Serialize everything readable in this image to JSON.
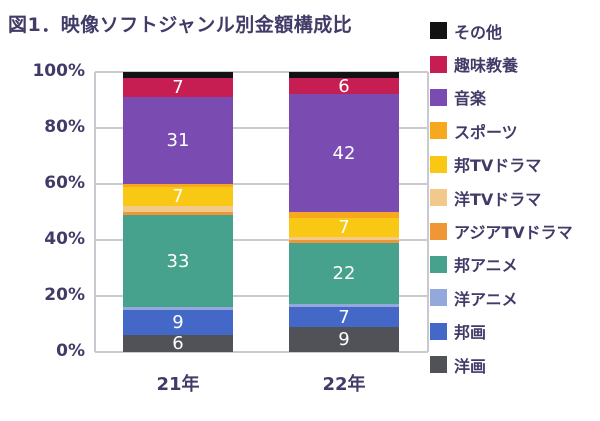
{
  "chart_data": {
    "type": "bar",
    "variant": "100-percent-stacked-column",
    "title": "図1．映像ソフトジャンル別金額構成比",
    "categories": [
      "21年",
      "22年"
    ],
    "yticks": [
      "100%",
      "80%",
      "60%",
      "40%",
      "20%",
      "0%"
    ],
    "ylim": [
      0,
      100
    ],
    "grid": true,
    "legend_position": "right",
    "label_color": "#ffffff",
    "axis_text_color": "#413b68",
    "series_bottom_to_top": [
      {
        "name": "洋画",
        "color": "#515158",
        "values": [
          6,
          9
        ]
      },
      {
        "name": "邦画",
        "color": "#4468c8",
        "values": [
          9,
          7
        ]
      },
      {
        "name": "洋アニメ",
        "color": "#93a9dc",
        "values": [
          1,
          1
        ]
      },
      {
        "name": "邦アニメ",
        "color": "#46a18d",
        "values": [
          33,
          22
        ]
      },
      {
        "name": "アジアTVドラマ",
        "color": "#ef9737",
        "values": [
          1,
          1
        ]
      },
      {
        "name": "洋TVドラマ",
        "color": "#f3c98b",
        "values": [
          2,
          1
        ]
      },
      {
        "name": "邦TVドラマ",
        "color": "#f8c815",
        "values": [
          7,
          7
        ]
      },
      {
        "name": "スポーツ",
        "color": "#f6a81f",
        "values": [
          1,
          2
        ]
      },
      {
        "name": "音楽",
        "color": "#7a4cb2",
        "values": [
          31,
          42
        ]
      },
      {
        "name": "趣味教養",
        "color": "#c61e52",
        "values": [
          7,
          6
        ]
      },
      {
        "name": "その他",
        "color": "#131313",
        "values": [
          2,
          2
        ]
      }
    ]
  }
}
